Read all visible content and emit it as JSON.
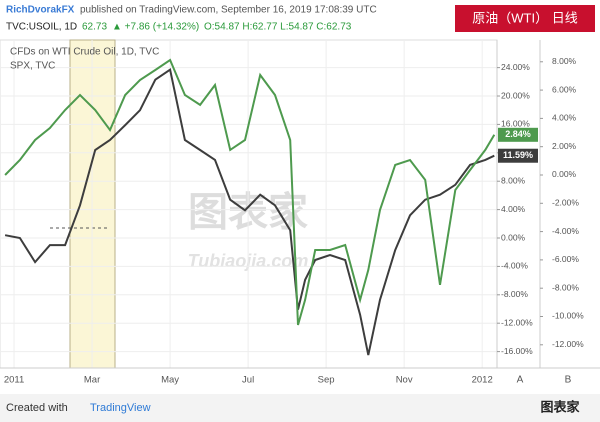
{
  "header": {
    "publisher": "RichDvorakFX",
    "published_text": "published on TradingView.com, September 16, 2019 17:08:39 UTC",
    "symbol": "TVC:USOIL, 1D",
    "last": "62.73",
    "change": "▲ +7.86 (+14.32%)",
    "ohlc": "O:54.87 H:62.77 L:54.87 C:62.73",
    "badge": "原油（WTI）  日线"
  },
  "footer": {
    "created_with": "Created with",
    "brand": "TradingView",
    "logo_text": "图表家"
  },
  "watermark": {
    "main": "图表家",
    "sub": "Tubiaojia.com"
  },
  "chart_data": {
    "type": "line",
    "x": [
      -0.23,
      0.15,
      0.54,
      0.92,
      1.31,
      1.69,
      2.08,
      2.46,
      2.85,
      3.23,
      3.62,
      4,
      4.38,
      4.77,
      5.15,
      5.54,
      5.92,
      6.31,
      6.69,
      7.08,
      7.28,
      7.46,
      7.72,
      8.1,
      8.49,
      8.87,
      9.08,
      9.38,
      9.77,
      10.15,
      10.54,
      10.92,
      11.31,
      11.69,
      12.08,
      12.31
    ],
    "xlim": [
      -0.36,
      12.38
    ],
    "xticks": [
      {
        "value": 0,
        "label": "2011"
      },
      {
        "value": 2,
        "label": "Mar"
      },
      {
        "value": 4,
        "label": "May"
      },
      {
        "value": 6,
        "label": "Jul"
      },
      {
        "value": 8,
        "label": "Sep"
      },
      {
        "value": 10,
        "label": "Nov"
      },
      {
        "value": 12,
        "label": "2012"
      }
    ],
    "ylim": [
      -18.31,
      27.89
    ],
    "yticks": [
      {
        "value": -16,
        "label": "-16.00%"
      },
      {
        "value": -12,
        "label": "-12.00%"
      },
      {
        "value": -8,
        "label": "-8.00%"
      },
      {
        "value": -4,
        "label": "-4.00%"
      },
      {
        "value": 0,
        "label": "0.00%"
      },
      {
        "value": 4,
        "label": "4.00%"
      },
      {
        "value": 8,
        "label": "8.00%"
      },
      {
        "value": 12,
        "label": "12.00%"
      },
      {
        "value": 16,
        "label": "16.00%"
      },
      {
        "value": 20,
        "label": "20.00%"
      },
      {
        "value": 24,
        "label": "24.00%"
      }
    ],
    "y_axis_label": "A",
    "y2lim": [
      -13.64,
      9.54
    ],
    "y2ticks": [
      {
        "value": -12,
        "label": "-12.00%"
      },
      {
        "value": -10,
        "label": "-10.00%"
      },
      {
        "value": -8,
        "label": "-8.00%"
      },
      {
        "value": -6,
        "label": "-6.00%"
      },
      {
        "value": -4,
        "label": "-4.00%"
      },
      {
        "value": -2,
        "label": "-2.00%"
      },
      {
        "value": 0,
        "label": "0.00%"
      },
      {
        "value": 2,
        "label": "2.00%"
      },
      {
        "value": 4,
        "label": "4.00%"
      },
      {
        "value": 6,
        "label": "6.00%"
      },
      {
        "value": 8,
        "label": "8.00%"
      }
    ],
    "y2_axis_label": "B",
    "grid": true,
    "series": [
      {
        "name": "CFDs on WTI Crude Oil, 1D, TVC",
        "color": "#3d3d3d",
        "last_label": "11.59%",
        "values": [
          0.4,
          0,
          -3.4,
          -1,
          -1,
          4.6,
          12.4,
          13.8,
          15.9,
          18,
          22.3,
          23.7,
          13.8,
          12.4,
          11,
          5.4,
          3.9,
          6.1,
          4.6,
          1.1,
          -10.1,
          -5.9,
          -3.1,
          -2.4,
          -3.1,
          -10.8,
          -16.5,
          -8.7,
          -1.7,
          3.2,
          5.4,
          6.1,
          7.5,
          10.3,
          11,
          11.59
        ]
      },
      {
        "name": "SPX, TVC",
        "color": "#4e9a4e",
        "axis": "y2",
        "last_label": "2.84%",
        "values": [
          0,
          1.06,
          2.47,
          3.32,
          4.59,
          5.65,
          4.59,
          3.18,
          5.65,
          6.71,
          7.42,
          8.13,
          5.65,
          4.95,
          6.36,
          1.77,
          2.47,
          7.07,
          5.65,
          2.47,
          -10.6,
          -8.83,
          -5.3,
          -5.3,
          -4.95,
          -8.83,
          -6.71,
          -2.47,
          0.71,
          1.06,
          -0.35,
          -7.77,
          -1.06,
          0.35,
          1.77,
          2.84
        ]
      }
    ]
  }
}
